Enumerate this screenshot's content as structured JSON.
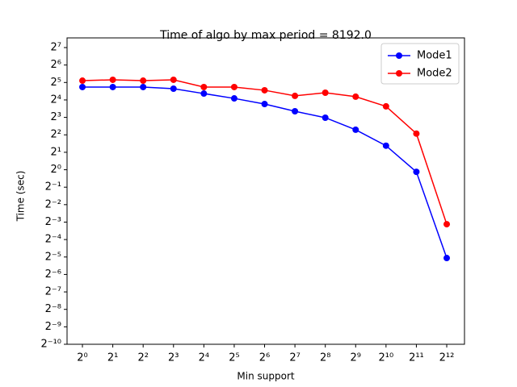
{
  "chart_data": {
    "type": "line",
    "title": "Time of algo by max period = 8192.0",
    "x_label": "Min support",
    "y_label": "Time (sec)",
    "x": [
      1,
      2,
      4,
      8,
      16,
      32,
      64,
      128,
      256,
      512,
      1024,
      2048,
      4096
    ],
    "series": [
      {
        "name": "Mode1",
        "color": "#0000ff",
        "values": [
          26.7,
          26.7,
          26.7,
          25.0,
          20.6,
          17.0,
          13.6,
          10.2,
          7.9,
          4.9,
          2.6,
          0.92,
          0.03
        ]
      },
      {
        "name": "Mode2",
        "color": "#ff0000",
        "values": [
          34.4,
          35.6,
          34.4,
          35.6,
          26.7,
          26.7,
          23.5,
          18.8,
          21.3,
          18.2,
          12.4,
          4.2,
          0.115
        ]
      }
    ],
    "x_log_base": 2,
    "y_log_base": 2,
    "xlim": [
      0.704,
      6144
    ],
    "ylim": [
      0.0009765625,
      188
    ],
    "xticks": [
      {
        "value": 1,
        "label": "2⁰"
      },
      {
        "value": 2,
        "label": "2¹"
      },
      {
        "value": 4,
        "label": "2²"
      },
      {
        "value": 8,
        "label": "2³"
      },
      {
        "value": 16,
        "label": "2⁴"
      },
      {
        "value": 32,
        "label": "2⁵"
      },
      {
        "value": 64,
        "label": "2⁶"
      },
      {
        "value": 128,
        "label": "2⁷"
      },
      {
        "value": 256,
        "label": "2⁸"
      },
      {
        "value": 512,
        "label": "2⁹"
      },
      {
        "value": 1024,
        "label": "2¹⁰"
      },
      {
        "value": 2048,
        "label": "2¹¹"
      },
      {
        "value": 4096,
        "label": "2¹²"
      }
    ],
    "yticks": [
      {
        "value": 0.0009765625,
        "label": "2⁻¹⁰"
      },
      {
        "value": 0.001953125,
        "label": "2⁻⁹"
      },
      {
        "value": 0.00390625,
        "label": "2⁻⁸"
      },
      {
        "value": 0.0078125,
        "label": "2⁻⁷"
      },
      {
        "value": 0.015625,
        "label": "2⁻⁶"
      },
      {
        "value": 0.03125,
        "label": "2⁻⁵"
      },
      {
        "value": 0.0625,
        "label": "2⁻⁴"
      },
      {
        "value": 0.125,
        "label": "2⁻³"
      },
      {
        "value": 0.25,
        "label": "2⁻²"
      },
      {
        "value": 0.5,
        "label": "2⁻¹"
      },
      {
        "value": 1,
        "label": "2⁰"
      },
      {
        "value": 2,
        "label": "2¹"
      },
      {
        "value": 4,
        "label": "2²"
      },
      {
        "value": 8,
        "label": "2³"
      },
      {
        "value": 16,
        "label": "2⁴"
      },
      {
        "value": 32,
        "label": "2⁵"
      },
      {
        "value": 64,
        "label": "2⁶"
      },
      {
        "value": 128,
        "label": "2⁷"
      }
    ],
    "legend_position": "upper right",
    "grid": false
  }
}
